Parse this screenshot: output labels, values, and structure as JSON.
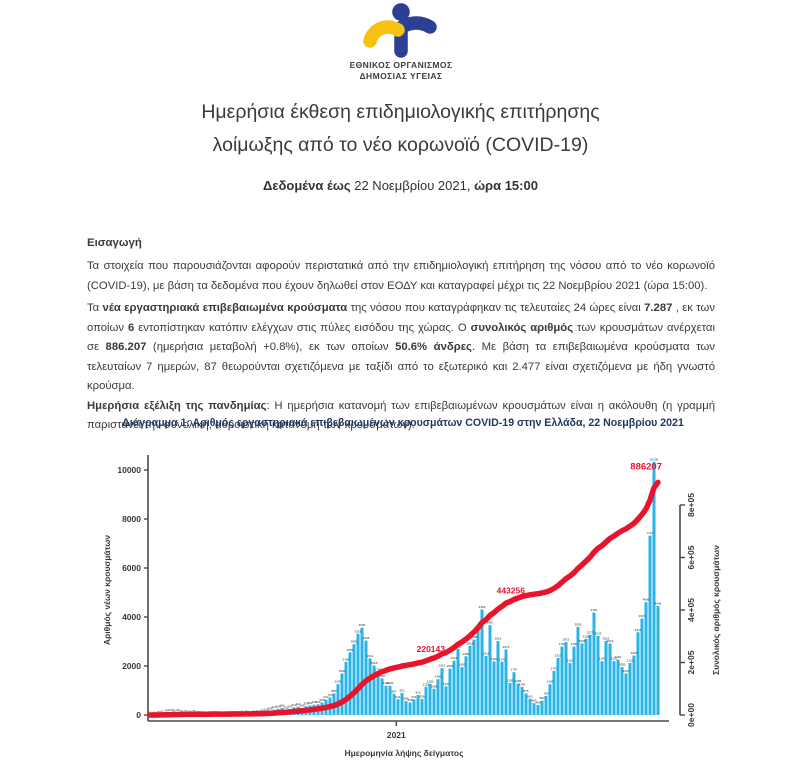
{
  "logo": {
    "org_line1": "ΕΘΝΙΚΟΣ ΟΡΓΑΝΙΣΜΟΣ",
    "org_line2": "ΔΗΜΟΣΙΑΣ ΥΓΕΙΑΣ",
    "blue": "#2B3F94",
    "yellow": "#F7C112"
  },
  "header": {
    "title_line1": "Ημερήσια έκθεση επιδημιολογικής επιτήρησης",
    "title_line2": "λοίμωξης από το νέο κορωνοϊό (COVID-19)",
    "date_runs": [
      {
        "t": "Δεδομένα έως ",
        "b": true
      },
      {
        "t": "22 Νοεμβρίου 2021, ",
        "b": false
      },
      {
        "t": "ώρα 15:00",
        "b": true
      }
    ]
  },
  "intro": {
    "heading": "Εισαγωγή",
    "paragraph": "Τα στοιχεία που παρουσιάζονται αφορούν περιστατικά από την επιδημιολογική επιτήρηση της νόσου από το νέο κορωνοϊό (COVID-19), με βάση τα δεδομένα που έχουν δηλωθεί στον ΕΟΔΥ και καταγραφεί μέχρι τις 22 Νοεμβρίου 2021 (ώρα 15:00)."
  },
  "body": {
    "paragraph2_runs": [
      {
        "t": "Τα ",
        "b": false
      },
      {
        "t": "νέα εργαστηριακά επιβεβαιωμένα κρούσματα",
        "b": true
      },
      {
        "t": " της νόσου που καταγράφηκαν τις τελευταίες 24 ώρες είναι ",
        "b": false
      },
      {
        "t": "7.287",
        "b": true
      },
      {
        "t": " , εκ των οποίων ",
        "b": false
      },
      {
        "t": "6",
        "b": true
      },
      {
        "t": " εντοπίστηκαν κατόπιν ελέγχων στις πύλες εισόδου της χώρας.  Ο ",
        "b": false
      },
      {
        "t": "συνολικός αριθμός",
        "b": true
      },
      {
        "t": " των κρουσμάτων ανέρχεται σε ",
        "b": false
      },
      {
        "t": "886.207",
        "b": true
      },
      {
        "t": " (ημερήσια μεταβολή +0.8%), εκ των οποίων ",
        "b": false
      },
      {
        "t": "50.6% άνδρες",
        "b": true
      },
      {
        "t": ".  Με βάση τα επιβεβαιωμένα κρούσματα των τελευταίων 7 ημερών, 87 θεωρούνται σχετιζόμενα με ταξίδι από το εξωτερικό και 2.477 είναι σχετιζόμενα με ήδη γνωστό κρούσμα.",
        "b": false
      }
    ],
    "paragraph3_runs": [
      {
        "t": "Ημερήσια εξέλιξη της πανδημίας",
        "b": true
      },
      {
        "t": ": Η ημερήσια κατανομή των επιβεβαιωμένων κρουσμάτων είναι η ακόλουθη (η γραμμή παριστάνει την συνολική, αθροιστική κατανομή των κρουσμάτων).",
        "b": false
      }
    ]
  },
  "chart_data": {
    "type": "bar",
    "title": "Διάγραμμα 1: Αριθμός εργαστηριακά επιβεβαιωμένων κρουσμάτων COVID-19 στην Ελλάδα, 22 Νοεμβρίου 2021",
    "xlabel": "Ημερομηνία λήψης δείγματος",
    "ylabel_left": "Αριθμός νέων κρουσμάτων",
    "ylabel_right": "Συνολικός αριθμός κρουσμάτων",
    "y_left_ticks": [
      0,
      2000,
      4000,
      6000,
      8000,
      10000
    ],
    "y_left_max": 10000,
    "y_right_ticks": [
      "0e+00",
      "2e+05",
      "4e+05",
      "6e+05",
      "8e+05"
    ],
    "y_right_tick_values": [
      0,
      200000,
      400000,
      600000,
      800000
    ],
    "y_right_max": 800000,
    "x_tick_labels": [
      "2021"
    ],
    "x_tick_fractions": [
      0.485
    ],
    "bar_color": "#29B4E8",
    "line_color": "#E8142C",
    "line_total": 886207,
    "annotations": [
      {
        "label": "220143",
        "value": 220143
      },
      {
        "label": "443256",
        "value": 443256
      },
      {
        "label": "886207",
        "value": 886207
      }
    ],
    "new_cases": [
      2,
      6,
      18,
      42,
      78,
      103,
      85,
      96,
      61,
      52,
      34,
      56,
      25,
      14,
      10,
      19,
      12,
      16,
      9,
      14,
      22,
      28,
      20,
      31,
      43,
      27,
      36,
      52,
      88,
      126,
      168,
      217,
      254,
      284,
      202,
      241,
      310,
      342,
      286,
      359,
      391,
      420,
      436,
      508,
      632,
      715,
      882,
      1259,
      1690,
      2166,
      2556,
      2892,
      3316,
      3565,
      3038,
      2311,
      2018,
      1747,
      1497,
      1199,
      1194,
      867,
      641,
      901,
      566,
      508,
      641,
      816,
      658,
      1151,
      1265,
      1068,
      1460,
      1913,
      1170,
      1891,
      2215,
      2702,
      1955,
      2395,
      2818,
      3080,
      3465,
      4309,
      2411,
      3667,
      2187,
      3015,
      2170,
      2679,
      1305,
      1747,
      1285,
      1142,
      875,
      663,
      482,
      409,
      582,
      780,
      1256,
      1797,
      2327,
      2794,
      2972,
      2116,
      2790,
      3593,
      2926,
      3109,
      3273,
      4181,
      3223,
      2197,
      3023,
      2919,
      2197,
      2262,
      1955,
      1697,
      2125,
      2425,
      3376,
      3937,
      4606,
      7317,
      10330,
      4446
    ]
  }
}
